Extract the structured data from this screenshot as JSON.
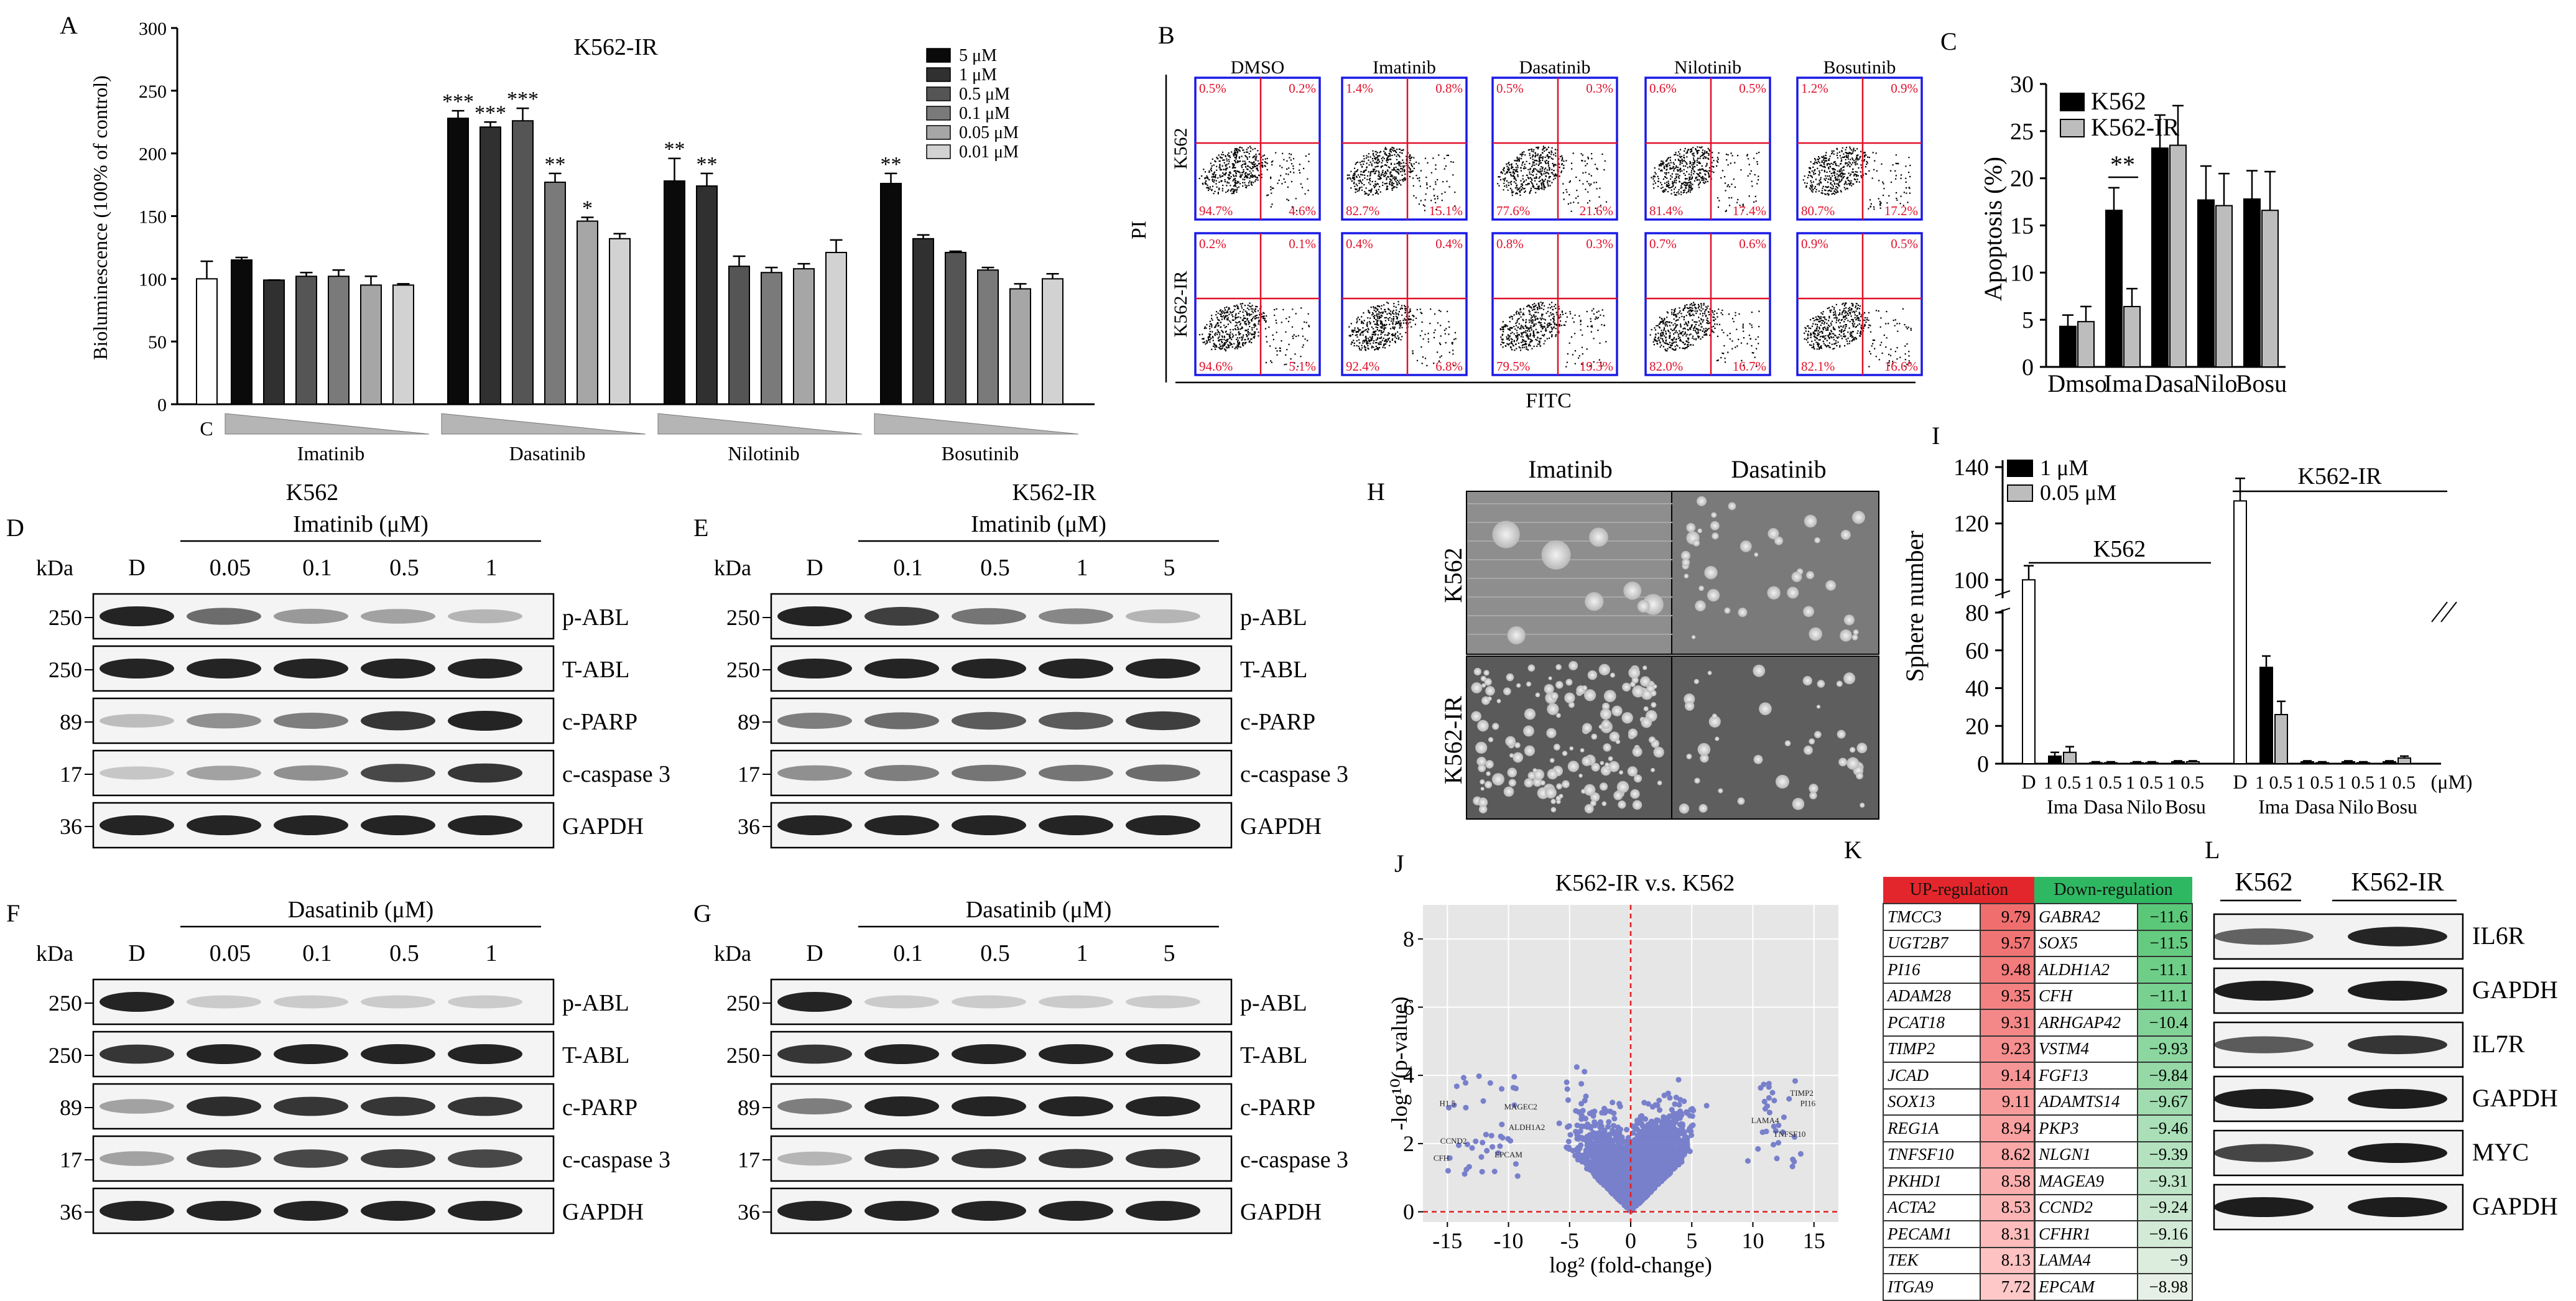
{
  "panels": {
    "A": "A",
    "B": "B",
    "C": "C",
    "D": "D",
    "E": "E",
    "F": "F",
    "G": "G",
    "H": "H",
    "I": "I",
    "J": "J",
    "K": "K",
    "L": "L"
  },
  "chart_data": [
    {
      "panel": "A",
      "type": "bar",
      "title": "K562-IR",
      "ylabel": "Bioluminescence (100% of control)",
      "ylim": [
        0,
        300
      ],
      "yticks": [
        0,
        50,
        100,
        150,
        200,
        250,
        300
      ],
      "control_label": "C",
      "control": {
        "value": 100,
        "error": 14
      },
      "legend": [
        "5 μM",
        "1 μM",
        "0.5 μM",
        "0.1 μM",
        "0.05 μM",
        "0.01 μM"
      ],
      "groups": [
        {
          "name": "Imatinib",
          "values": [
            115,
            99,
            102,
            102,
            95,
            95
          ],
          "errors": [
            2,
            0,
            3,
            5,
            7,
            1
          ],
          "sig": [
            "",
            "",
            "",
            "",
            "",
            ""
          ]
        },
        {
          "name": "Dasatinib",
          "values": [
            228,
            221,
            226,
            177,
            146,
            132
          ],
          "errors": [
            6,
            4,
            10,
            7,
            3,
            4
          ],
          "sig": [
            "***",
            "***",
            "***",
            "**",
            "*",
            ""
          ]
        },
        {
          "name": "Nilotinib",
          "values": [
            178,
            174,
            110,
            105,
            108,
            121
          ],
          "errors": [
            18,
            10,
            8,
            4,
            4,
            10
          ],
          "sig": [
            "**",
            "**",
            "",
            "",
            "",
            ""
          ]
        },
        {
          "name": "Bosutinib",
          "values": [
            176,
            132,
            121,
            107,
            92,
            100
          ],
          "errors": [
            8,
            3,
            1,
            2,
            4,
            4
          ],
          "sig": [
            "**",
            "",
            "",
            "",
            "",
            ""
          ]
        }
      ]
    },
    {
      "panel": "C",
      "type": "bar",
      "ylabel": "Apoptosis (%)",
      "ylim": [
        0,
        30
      ],
      "yticks": [
        0,
        5,
        10,
        15,
        20,
        25,
        30
      ],
      "categories": [
        "Dmso",
        "Ima",
        "Dasa",
        "Nilo",
        "Bosu"
      ],
      "series": [
        {
          "name": "K562",
          "values": [
            4.3,
            16.6,
            23.2,
            17.7,
            17.8
          ],
          "errors": [
            1.2,
            2.4,
            3.5,
            3.6,
            3.0
          ]
        },
        {
          "name": "K562-IR",
          "values": [
            4.8,
            6.4,
            23.5,
            17.1,
            16.6
          ],
          "errors": [
            1.6,
            1.9,
            4.2,
            3.4,
            4.1
          ]
        }
      ],
      "annotation": "**"
    },
    {
      "panel": "I",
      "type": "bar",
      "ylabel": "Sphere number",
      "yticks_lower": [
        0,
        20,
        40,
        60,
        80
      ],
      "yticks_upper": [
        100,
        120,
        140
      ],
      "legend": [
        "1 μM",
        "0.05 μM"
      ],
      "groups": [
        {
          "cell": "K562",
          "control": 100,
          "control_error": 5,
          "values_1": [
            4,
            0.5,
            0.5,
            1
          ],
          "values_005": [
            6,
            0.5,
            0.5,
            1
          ]
        },
        {
          "cell": "K562-IR",
          "control": 128,
          "control_error": 8,
          "values_1": [
            51,
            1,
            1,
            1
          ],
          "values_005": [
            26,
            0.5,
            0.5,
            3
          ]
        }
      ],
      "x_group_labels": [
        "Ima",
        "Dasa",
        "Nilo",
        "Bosu"
      ],
      "x_sub_label": "1 0.5",
      "x_control_label": "D",
      "unit": "(μM)",
      "bracket_labels": [
        "K562",
        "K562-IR"
      ]
    },
    {
      "panel": "J",
      "type": "scatter",
      "title": "K562-IR v.s. K562",
      "xlabel": "log² (fold-change)",
      "ylabel": "-log¹⁰(p-value)",
      "xticks": [
        -15,
        -10,
        -5,
        0,
        5,
        10,
        15
      ],
      "yticks": [
        0,
        2,
        4,
        6,
        8
      ],
      "xlim": [
        -17,
        17
      ],
      "ylim": [
        -0.3,
        9
      ],
      "labeled_genes": [
        "H1.5",
        "CCND2",
        "CFH",
        "MAGEC2",
        "ALDH1A2",
        "EPCAM",
        "TIMP2",
        "PI16",
        "LAMA4",
        "TNFSF10"
      ]
    }
  ],
  "panel_B": {
    "drugs": [
      "DMSO",
      "Imatinib",
      "Dasatinib",
      "Nilotinib",
      "Bosutinib"
    ],
    "rows": [
      "K562",
      "K562-IR"
    ],
    "ylabel": "PI",
    "xlabel": "FITC",
    "quadrants": [
      [
        [
          "0.5%",
          "0.2%",
          "94.7%",
          "4.6%"
        ],
        [
          "1.4%",
          "0.8%",
          "82.7%",
          "15.1%"
        ],
        [
          "0.5%",
          "0.3%",
          "77.6%",
          "21.6%"
        ],
        [
          "0.6%",
          "0.5%",
          "81.4%",
          "17.4%"
        ],
        [
          "1.2%",
          "0.9%",
          "80.7%",
          "17.2%"
        ]
      ],
      [
        [
          "0.2%",
          "0.1%",
          "94.6%",
          "5.1%"
        ],
        [
          "0.4%",
          "0.4%",
          "92.4%",
          "6.8%"
        ],
        [
          "0.8%",
          "0.3%",
          "79.5%",
          "19.3%"
        ],
        [
          "0.7%",
          "0.6%",
          "82.0%",
          "16.7%"
        ],
        [
          "0.9%",
          "0.5%",
          "82.1%",
          "16.6%"
        ]
      ]
    ]
  },
  "blots": {
    "kda": "kDa",
    "D_label": "D",
    "D": {
      "cell": "K562",
      "drug": "Imatinib (μM)",
      "doses": [
        "0.05",
        "0.1",
        "0.5",
        "1"
      ]
    },
    "E": {
      "cell": "K562-IR",
      "drug": "Imatinib (μM)",
      "doses": [
        "0.1",
        "0.5",
        "1",
        "5"
      ]
    },
    "F": {
      "drug": "Dasatinib (μM)",
      "doses": [
        "0.05",
        "0.1",
        "0.5",
        "1"
      ]
    },
    "G": {
      "drug": "Dasatinib (μM)",
      "doses": [
        "0.1",
        "0.5",
        "1",
        "5"
      ]
    },
    "markers": [
      "250",
      "250",
      "89",
      "17",
      "36"
    ],
    "proteins": [
      "p-ABL",
      "T-ABL",
      "c-PARP",
      "c-caspase 3",
      "GAPDH"
    ]
  },
  "panel_H": {
    "cols": [
      "Imatinib",
      "Dasatinib"
    ],
    "rows": [
      "K562",
      "K562-IR"
    ]
  },
  "panel_K": {
    "up_header": "UP-regulation",
    "down_header": "Down-regulation",
    "up": [
      {
        "gene": "TMCC3",
        "value": "9.79"
      },
      {
        "gene": "UGT2B7",
        "value": "9.57"
      },
      {
        "gene": "PI16",
        "value": "9.48"
      },
      {
        "gene": "ADAM28",
        "value": "9.35"
      },
      {
        "gene": "PCAT18",
        "value": "9.31"
      },
      {
        "gene": "TIMP2",
        "value": "9.23"
      },
      {
        "gene": "JCAD",
        "value": "9.14"
      },
      {
        "gene": "SOX13",
        "value": "9.11"
      },
      {
        "gene": "REG1A",
        "value": "8.94"
      },
      {
        "gene": "TNFSF10",
        "value": "8.62"
      },
      {
        "gene": "PKHD1",
        "value": "8.58"
      },
      {
        "gene": "ACTA2",
        "value": "8.53"
      },
      {
        "gene": "PECAM1",
        "value": "8.31"
      },
      {
        "gene": "TEK",
        "value": "8.13"
      },
      {
        "gene": "ITGA9",
        "value": "7.72"
      }
    ],
    "down": [
      {
        "gene": "GABRA2",
        "value": "−11.6"
      },
      {
        "gene": "SOX5",
        "value": "−11.5"
      },
      {
        "gene": "ALDH1A2",
        "value": "−11.1"
      },
      {
        "gene": "CFH",
        "value": "−11.1"
      },
      {
        "gene": "ARHGAP42",
        "value": "−10.4"
      },
      {
        "gene": "VSTM4",
        "value": "−9.93"
      },
      {
        "gene": "FGF13",
        "value": "−9.84"
      },
      {
        "gene": "ADAMTS14",
        "value": "−9.67"
      },
      {
        "gene": "PKP3",
        "value": "−9.46"
      },
      {
        "gene": "NLGN1",
        "value": "−9.39"
      },
      {
        "gene": "MAGEA9",
        "value": "−9.31"
      },
      {
        "gene": "CCND2",
        "value": "−9.24"
      },
      {
        "gene": "CFHR1",
        "value": "−9.16"
      },
      {
        "gene": "LAMA4",
        "value": "−9"
      },
      {
        "gene": "EPCAM",
        "value": "−8.98"
      }
    ]
  },
  "panel_L": {
    "cells": [
      "K562",
      "K562-IR"
    ],
    "proteins": [
      "IL6R",
      "GAPDH",
      "IL7R",
      "GAPDH",
      "MYC",
      "GAPDH"
    ]
  },
  "colors": {
    "bar_shades": [
      "#0a0a0a",
      "#303030",
      "#555555",
      "#7a7a7a",
      "#a6a6a6",
      "#d2d2d2"
    ],
    "flow_border": "#1a1ae6",
    "flow_quadrant": "#e0102a",
    "volcano_dot": "#6b74c8",
    "volcano_bg": "#e6e6e6",
    "up_bg": "#e3262b",
    "down_bg": "#2fb862"
  }
}
